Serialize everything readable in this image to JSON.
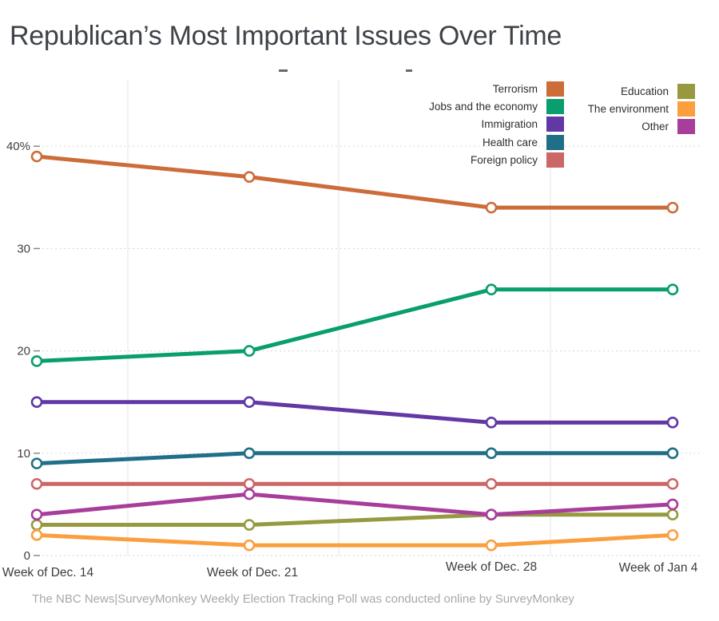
{
  "title": "Republican’s Most Important Issues Over Time",
  "footer": "The NBC News|SurveyMonkey Weekly Election Tracking Poll was conducted online by SurveyMonkey",
  "colors": {
    "terrorism": "#cc6c39",
    "jobs": "#089e6d",
    "immigration": "#6238a5",
    "health_care": "#1f6f87",
    "foreign_policy": "#cc6667",
    "education": "#96993f",
    "environment": "#fb9e3e",
    "other": "#a83d9b",
    "grid": "#d8d8d8",
    "vgrid": "#ededee",
    "axis_text": "#3f3f3f"
  },
  "legend": {
    "columns": [
      [
        {
          "label": "Terrorism",
          "color": "#cc6c39"
        },
        {
          "label": "Jobs and the economy",
          "color": "#089e6d"
        },
        {
          "label": "Immigration",
          "color": "#6238a5"
        },
        {
          "label": "Health care",
          "color": "#1f6f87"
        },
        {
          "label": "Foreign policy",
          "color": "#cc6667"
        }
      ],
      [
        {
          "label": "Education",
          "color": "#96993f"
        },
        {
          "label": "The environment",
          "color": "#fb9e3e"
        },
        {
          "label": "Other",
          "color": "#a83d9b"
        }
      ]
    ]
  },
  "chart_data": {
    "type": "line",
    "title": "Republican’s Most Important Issues Over Time",
    "x": [
      "Week of Dec. 14",
      "Week of Dec. 21",
      "Week of Dec. 28",
      "Week of Jan 4"
    ],
    "series": [
      {
        "name": "Terrorism",
        "color": "#cc6c39",
        "values": [
          39,
          37,
          34,
          34
        ]
      },
      {
        "name": "Jobs and the economy",
        "color": "#089e6d",
        "values": [
          19,
          20,
          26,
          26
        ]
      },
      {
        "name": "Immigration",
        "color": "#6238a5",
        "values": [
          15,
          15,
          13,
          13
        ]
      },
      {
        "name": "Health care",
        "color": "#1f6f87",
        "values": [
          9,
          10,
          10,
          10
        ]
      },
      {
        "name": "Foreign policy",
        "color": "#cc6667",
        "values": [
          7,
          7,
          7,
          7
        ]
      },
      {
        "name": "Education",
        "color": "#96993f",
        "values": [
          3,
          3,
          4,
          4
        ]
      },
      {
        "name": "The environment",
        "color": "#fb9e3e",
        "values": [
          2,
          1,
          1,
          2
        ]
      },
      {
        "name": "Other",
        "color": "#a83d9b",
        "values": [
          4,
          6,
          4,
          5
        ]
      }
    ],
    "y_ticks": [
      {
        "value": 40,
        "label": "40%"
      },
      {
        "value": 30,
        "label": "30"
      },
      {
        "value": 20,
        "label": "20"
      },
      {
        "value": 10,
        "label": "10"
      },
      {
        "value": 0,
        "label": "0"
      }
    ],
    "ylim": [
      0,
      43
    ],
    "xlabel": "",
    "ylabel": "",
    "grid": true,
    "legend_position": "top-right",
    "marker": "open-circle"
  }
}
